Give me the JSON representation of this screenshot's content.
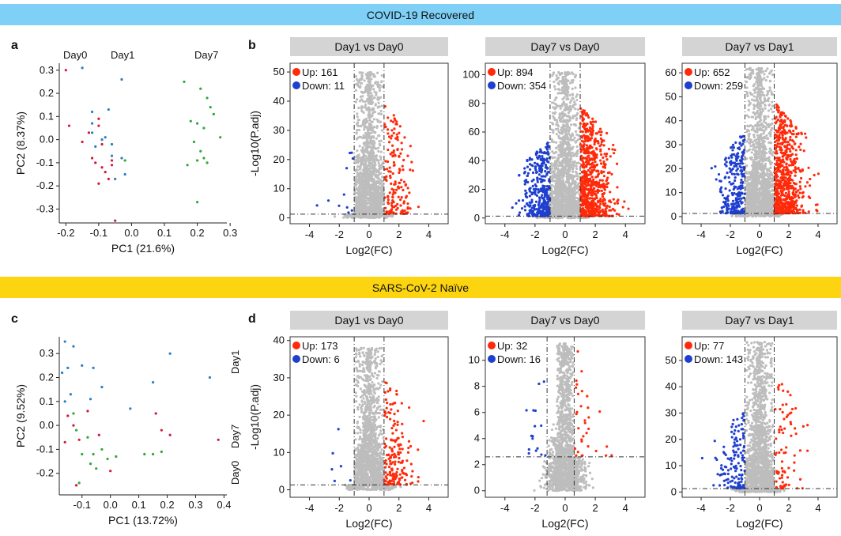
{
  "colors": {
    "banner_recovered": "#7ed0f7",
    "banner_naive": "#fcd410",
    "panel_header": "#d4d4d4",
    "up": "#ff2a0a",
    "down": "#1f3fd0",
    "ns": "#bdbdbd",
    "day0": "#d11a3c",
    "day1": "#2a7fc4",
    "day7": "#2fa83a"
  },
  "banners": {
    "recovered": "COVID-19 Recovered",
    "naive": "SARS-CoV-2 Naïve"
  },
  "panel_letters": {
    "a": "a",
    "b": "b",
    "c": "c",
    "d": "d"
  },
  "pca": [
    {
      "id": "a",
      "xlabel": "PC1 (21.6%)",
      "ylabel": "PC2 (8.37%)",
      "xticks": [
        -0.2,
        -0.1,
        0.0,
        0.1,
        0.2,
        0.3
      ],
      "xtick_labels": [
        "-0.2",
        "-0.1",
        "0.0",
        "0.1",
        "0.2",
        "0.3"
      ],
      "yticks": [
        -0.3,
        -0.2,
        -0.1,
        0.0,
        0.1,
        0.2,
        0.3
      ],
      "ytick_labels": [
        "-0.3",
        "-0.2",
        "-0.1",
        "0.0",
        "0.1",
        "0.2",
        "0.3"
      ],
      "xlim": [
        -0.22,
        0.29
      ],
      "ylim": [
        -0.36,
        0.33
      ],
      "group_labels": [
        "Day0",
        "Day1",
        "Day7"
      ],
      "series": [
        {
          "name": "Day0",
          "points": [
            [
              -0.2,
              0.3
            ],
            [
              -0.19,
              0.06
            ],
            [
              -0.15,
              -0.01
            ],
            [
              -0.13,
              0.03
            ],
            [
              -0.12,
              -0.08
            ],
            [
              -0.11,
              -0.1
            ],
            [
              -0.1,
              0.09
            ],
            [
              -0.1,
              0.06
            ],
            [
              -0.09,
              -0.02
            ],
            [
              -0.08,
              -0.14
            ],
            [
              -0.07,
              -0.17
            ],
            [
              -0.1,
              -0.19
            ],
            [
              -0.06,
              -0.11
            ],
            [
              -0.09,
              -0.12
            ],
            [
              -0.05,
              -0.35
            ],
            [
              -0.06,
              -0.09
            ]
          ]
        },
        {
          "name": "Day1",
          "points": [
            [
              -0.15,
              0.31
            ],
            [
              -0.03,
              0.26
            ],
            [
              -0.12,
              0.12
            ],
            [
              -0.12,
              0.03
            ],
            [
              -0.09,
              0.0
            ],
            [
              -0.06,
              -0.02
            ],
            [
              -0.07,
              0.13
            ],
            [
              -0.11,
              -0.03
            ],
            [
              -0.08,
              0.01
            ],
            [
              -0.06,
              -0.07
            ],
            [
              -0.05,
              -0.17
            ],
            [
              -0.02,
              -0.15
            ],
            [
              -0.03,
              -0.08
            ],
            [
              -0.12,
              0.07
            ]
          ]
        },
        {
          "name": "Day7",
          "points": [
            [
              0.16,
              0.25
            ],
            [
              0.21,
              0.22
            ],
            [
              0.23,
              0.18
            ],
            [
              0.24,
              0.14
            ],
            [
              0.25,
              0.11
            ],
            [
              0.2,
              0.07
            ],
            [
              0.18,
              0.08
            ],
            [
              0.22,
              0.05
            ],
            [
              0.27,
              0.01
            ],
            [
              0.19,
              -0.01
            ],
            [
              0.21,
              -0.05
            ],
            [
              0.2,
              -0.09
            ],
            [
              0.17,
              -0.11
            ],
            [
              0.22,
              -0.08
            ],
            [
              0.23,
              -0.1
            ],
            [
              0.2,
              -0.27
            ],
            [
              -0.02,
              -0.09
            ]
          ]
        }
      ]
    },
    {
      "id": "c",
      "xlabel": "PC1 (13.72%)",
      "ylabel": "PC2 (9.52%)",
      "xticks": [
        -0.1,
        0.0,
        0.1,
        0.2,
        0.3,
        0.4
      ],
      "xtick_labels": [
        "-0.1",
        "0.0",
        "0.1",
        "0.2",
        "0.3",
        "0.4"
      ],
      "yticks": [
        -0.2,
        -0.1,
        0.0,
        0.1,
        0.2,
        0.3
      ],
      "ytick_labels": [
        "-0.2",
        "-0.1",
        "0.0",
        "0.1",
        "0.2",
        "0.3"
      ],
      "xlim": [
        -0.18,
        0.41
      ],
      "ylim": [
        -0.29,
        0.37
      ],
      "group_labels": [
        "Day1",
        "Day7",
        "Day0"
      ],
      "series": [
        {
          "name": "Day0",
          "points": [
            [
              -0.15,
              0.04
            ],
            [
              -0.13,
              0.0
            ],
            [
              -0.12,
              -0.25
            ],
            [
              -0.11,
              -0.06
            ],
            [
              -0.08,
              0.06
            ],
            [
              -0.04,
              -0.04
            ],
            [
              0.0,
              -0.19
            ],
            [
              0.16,
              0.05
            ],
            [
              0.18,
              -0.02
            ],
            [
              0.21,
              -0.04
            ],
            [
              0.38,
              -0.06
            ],
            [
              -0.16,
              -0.07
            ]
          ]
        },
        {
          "name": "Day1",
          "points": [
            [
              -0.16,
              0.35
            ],
            [
              -0.15,
              0.24
            ],
            [
              -0.13,
              0.33
            ],
            [
              -0.17,
              0.22
            ],
            [
              -0.1,
              0.25
            ],
            [
              -0.06,
              0.24
            ],
            [
              -0.03,
              0.16
            ],
            [
              -0.14,
              0.13
            ],
            [
              -0.07,
              0.11
            ],
            [
              0.07,
              0.07
            ],
            [
              0.21,
              0.3
            ],
            [
              0.35,
              0.2
            ],
            [
              0.15,
              0.18
            ],
            [
              -0.16,
              0.1
            ]
          ]
        },
        {
          "name": "Day7",
          "points": [
            [
              -0.13,
              0.05
            ],
            [
              -0.12,
              -0.02
            ],
            [
              -0.08,
              -0.05
            ],
            [
              -0.06,
              -0.12
            ],
            [
              -0.1,
              -0.12
            ],
            [
              -0.07,
              -0.16
            ],
            [
              -0.05,
              -0.18
            ],
            [
              -0.03,
              -0.1
            ],
            [
              -0.01,
              -0.14
            ],
            [
              0.02,
              -0.13
            ],
            [
              0.12,
              -0.12
            ],
            [
              0.15,
              -0.12
            ],
            [
              0.18,
              -0.11
            ],
            [
              -0.11,
              -0.24
            ]
          ]
        }
      ]
    }
  ],
  "volcanos": [
    {
      "title": "Day1 vs Day0",
      "up_label": "Up: 161",
      "down_label": "Down: 11",
      "xlabel": "Log2(FC)",
      "ylabel": "-Log10(P.adj)",
      "xlim": [
        -5.3,
        5.3
      ],
      "ylim": [
        -2,
        53
      ],
      "yticks": [
        0,
        10,
        20,
        30,
        40,
        50
      ],
      "ytick_labels": [
        "0",
        "10",
        "20",
        "30",
        "40",
        "50"
      ],
      "xticks": [
        -4,
        -2,
        0,
        2,
        4
      ],
      "xtick_labels": [
        "-4",
        "-2",
        "0",
        "2",
        "4"
      ],
      "vlines": [
        -1,
        1
      ],
      "hline": 1.3,
      "max_y": 50,
      "n_up": 161,
      "n_down": 11
    },
    {
      "title": "Day7 vs Day0",
      "up_label": "Up: 894",
      "down_label": "Down: 354",
      "xlabel": "Log2(FC)",
      "ylabel": "",
      "xlim": [
        -5.3,
        5.3
      ],
      "ylim": [
        -4,
        108
      ],
      "yticks": [
        0,
        20,
        40,
        60,
        80,
        100
      ],
      "ytick_labels": [
        "0",
        "20",
        "40",
        "60",
        "80",
        "100"
      ],
      "xticks": [
        -4,
        -2,
        0,
        2,
        4
      ],
      "xtick_labels": [
        "-4",
        "-2",
        "0",
        "2",
        "4"
      ],
      "vlines": [
        -1,
        1
      ],
      "hline": 1.3,
      "max_y": 102,
      "n_up": 894,
      "n_down": 354
    },
    {
      "title": "Day7 vs Day1",
      "up_label": "Up: 652",
      "down_label": "Down: 259",
      "xlabel": "Log2(FC)",
      "ylabel": "",
      "xlim": [
        -5.3,
        5.3
      ],
      "ylim": [
        -3,
        64
      ],
      "yticks": [
        0,
        10,
        20,
        30,
        40,
        50,
        60
      ],
      "ytick_labels": [
        "0",
        "10",
        "20",
        "30",
        "40",
        "50",
        "60"
      ],
      "xticks": [
        -4,
        -2,
        0,
        2,
        4
      ],
      "xtick_labels": [
        "-4",
        "-2",
        "0",
        "2",
        "4"
      ],
      "vlines": [
        -1,
        1
      ],
      "hline": 1.3,
      "max_y": 62,
      "n_up": 652,
      "n_down": 259
    },
    {
      "title": "Day1 vs Day0",
      "up_label": "Up: 173",
      "down_label": "Down: 6",
      "xlabel": "Log2(FC)",
      "ylabel": "-Log10(P.adj)",
      "xlim": [
        -5.3,
        5.3
      ],
      "ylim": [
        -2,
        41
      ],
      "yticks": [
        0,
        10,
        20,
        30,
        40
      ],
      "ytick_labels": [
        "0",
        "10",
        "20",
        "30",
        "40"
      ],
      "xticks": [
        -4,
        -2,
        0,
        2,
        4
      ],
      "xtick_labels": [
        "-4",
        "-2",
        "0",
        "2",
        "4"
      ],
      "vlines": [
        -1,
        1
      ],
      "hline": 1.3,
      "max_y": 38,
      "n_up": 173,
      "n_down": 6
    },
    {
      "title": "Day7 vs Day0",
      "up_label": "Up: 32",
      "down_label": "Down: 16",
      "xlabel": "Log2(FC)",
      "ylabel": "",
      "xlim": [
        -5.3,
        5.3
      ],
      "ylim": [
        -0.5,
        11.8
      ],
      "yticks": [
        0,
        2,
        4,
        6,
        8,
        10
      ],
      "ytick_labels": [
        "0",
        "2",
        "4",
        "6",
        "8",
        "10"
      ],
      "xticks": [
        -4,
        -2,
        0,
        2,
        4
      ],
      "xtick_labels": [
        "-4",
        "-2",
        "0",
        "2",
        "4"
      ],
      "vlines": [
        -1.2,
        0.6
      ],
      "hline": 2.6,
      "max_y": 11.3,
      "n_up": 32,
      "n_down": 16
    },
    {
      "title": "Day7 vs Day1",
      "up_label": "Up: 77",
      "down_label": "Down: 143",
      "xlabel": "Log2(FC)",
      "ylabel": "",
      "xlim": [
        -5.3,
        5.3
      ],
      "ylim": [
        -2,
        59
      ],
      "yticks": [
        0,
        10,
        20,
        30,
        40,
        50
      ],
      "ytick_labels": [
        "0",
        "10",
        "20",
        "30",
        "40",
        "50"
      ],
      "xticks": [
        -4,
        -2,
        0,
        2,
        4
      ],
      "xtick_labels": [
        "-4",
        "-2",
        "0",
        "2",
        "4"
      ],
      "vlines": [
        -1,
        1
      ],
      "hline": 1.3,
      "max_y": 57,
      "n_up": 77,
      "n_down": 143
    }
  ],
  "chart_data": [
    {
      "type": "scatter",
      "title": "",
      "xlabel": "PC1 (21.6%)",
      "ylabel": "PC2 (8.37%)",
      "legend": [
        "Day0",
        "Day1",
        "Day7"
      ]
    },
    {
      "type": "scatter",
      "title": "Day1 vs Day0",
      "xlabel": "Log2(FC)",
      "ylabel": "-Log10(P.adj)",
      "up": 161,
      "down": 11
    },
    {
      "type": "scatter",
      "title": "Day7 vs Day0",
      "xlabel": "Log2(FC)",
      "up": 894,
      "down": 354
    },
    {
      "type": "scatter",
      "title": "Day7 vs Day1",
      "xlabel": "Log2(FC)",
      "up": 652,
      "down": 259
    },
    {
      "type": "scatter",
      "title": "",
      "xlabel": "PC1 (13.72%)",
      "ylabel": "PC2 (9.52%)",
      "legend": [
        "Day1",
        "Day7",
        "Day0"
      ]
    },
    {
      "type": "scatter",
      "title": "Day1 vs Day0",
      "xlabel": "Log2(FC)",
      "ylabel": "-Log10(P.adj)",
      "up": 173,
      "down": 6
    },
    {
      "type": "scatter",
      "title": "Day7 vs Day0",
      "xlabel": "Log2(FC)",
      "up": 32,
      "down": 16
    },
    {
      "type": "scatter",
      "title": "Day7 vs Day1",
      "xlabel": "Log2(FC)",
      "up": 77,
      "down": 143
    }
  ]
}
